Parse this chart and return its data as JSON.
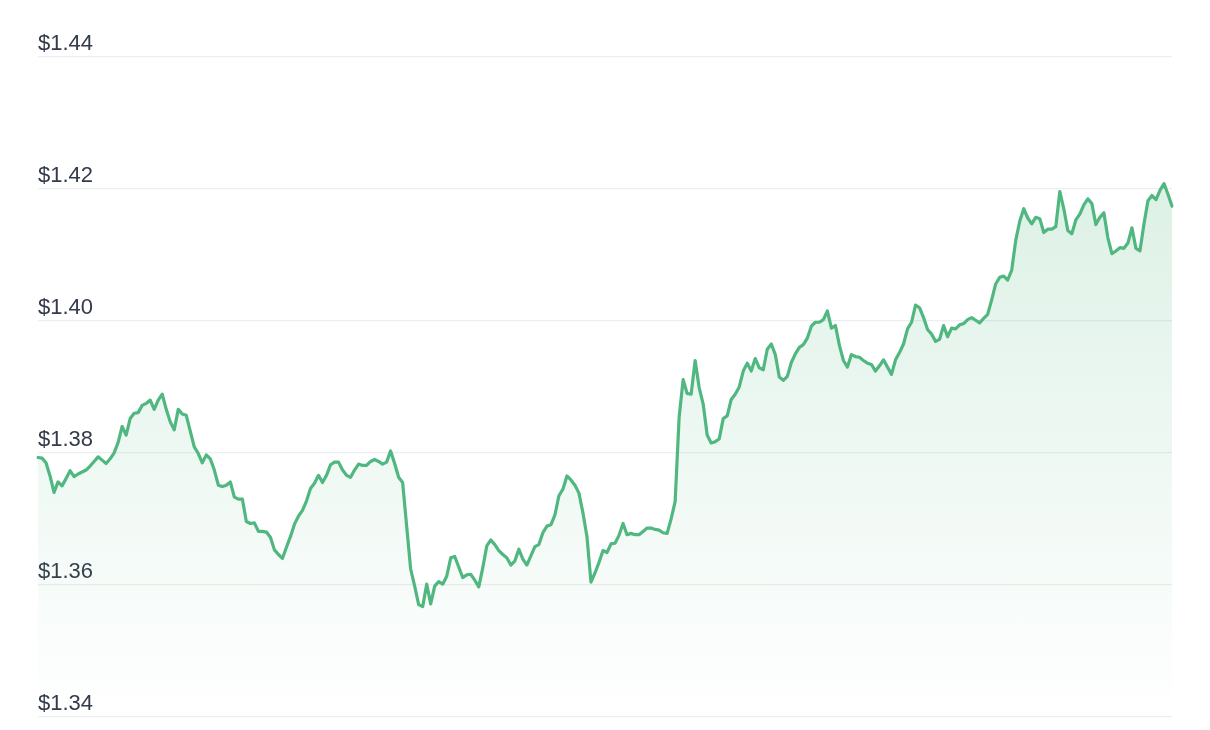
{
  "chart_data": {
    "type": "area",
    "categories": [
      null,
      null,
      null,
      null,
      null,
      null,
      null,
      null,
      null,
      null,
      null,
      null,
      null,
      null,
      null,
      null,
      null,
      null,
      null,
      null,
      null,
      null,
      null,
      null,
      null,
      null,
      null,
      null,
      null,
      null,
      null,
      null,
      null,
      null,
      null,
      null,
      null,
      null,
      null,
      null,
      null,
      null,
      null,
      null,
      null,
      null,
      null,
      null,
      null,
      null,
      null,
      null,
      null,
      null,
      null,
      null,
      null,
      null,
      null,
      null,
      null,
      null,
      null,
      null,
      null,
      null,
      null,
      null,
      null,
      null,
      null,
      null,
      null,
      null,
      null,
      null,
      null,
      null,
      null,
      null,
      null,
      null,
      null,
      null,
      null,
      null,
      null,
      null,
      null,
      null,
      null,
      null,
      null,
      null,
      null,
      null,
      null,
      null,
      null,
      null,
      null,
      null,
      null,
      null,
      null,
      null,
      null,
      null,
      null,
      null,
      null,
      null,
      null,
      null,
      null,
      null,
      null,
      null,
      null,
      null,
      null,
      null,
      null,
      null,
      null,
      null,
      null,
      null,
      null,
      null,
      null,
      null,
      null,
      null,
      null,
      null,
      null,
      null,
      null,
      null,
      null,
      null,
      null,
      null,
      null,
      null,
      null,
      null,
      null,
      null,
      null,
      null,
      null,
      null,
      null,
      null,
      null,
      null,
      null,
      null,
      null,
      null,
      null,
      null,
      null,
      null,
      null,
      null,
      null,
      null,
      null,
      null,
      null,
      null,
      null,
      null,
      null,
      null,
      null,
      null,
      null,
      null,
      null,
      null,
      null,
      null,
      null,
      null,
      null,
      null,
      null,
      null,
      null,
      null,
      null,
      null,
      null,
      null,
      null,
      null,
      null,
      null,
      null,
      null,
      null,
      null,
      null,
      null,
      null,
      null,
      null,
      null,
      null,
      null,
      null,
      null,
      null,
      null,
      null,
      null,
      null,
      null,
      null,
      null,
      null,
      null,
      null,
      null,
      null,
      null,
      null,
      null,
      null,
      null,
      null,
      null,
      null,
      null,
      null,
      null,
      null,
      null,
      null,
      null,
      null,
      null,
      null,
      null,
      null,
      null,
      null,
      null,
      null,
      null,
      null,
      null,
      null,
      null,
      null,
      null,
      null,
      null,
      null,
      null,
      null,
      null,
      null,
      null,
      null,
      null,
      null,
      null,
      null,
      null,
      null,
      null,
      null,
      null,
      null,
      null,
      null,
      null,
      null,
      null
    ],
    "values": [
      1.3793,
      1.3792,
      1.3785,
      1.3765,
      1.374,
      1.3756,
      1.375,
      1.3761,
      1.3773,
      1.3764,
      1.3768,
      1.3771,
      1.3774,
      1.378,
      1.3787,
      1.3794,
      1.3789,
      1.3784,
      1.3791,
      1.38,
      1.3816,
      1.384,
      1.3827,
      1.3852,
      1.386,
      1.3861,
      1.3872,
      1.3875,
      1.388,
      1.3866,
      1.388,
      1.3889,
      1.3866,
      1.3847,
      1.3835,
      1.3866,
      1.3859,
      1.3857,
      1.3833,
      1.3809,
      1.3799,
      1.3785,
      1.3797,
      1.3791,
      1.3774,
      1.3751,
      1.3749,
      1.3751,
      1.3756,
      1.3733,
      1.373,
      1.373,
      1.3696,
      1.3693,
      1.3694,
      1.3681,
      1.3681,
      1.368,
      1.3672,
      1.3653,
      1.3646,
      1.364,
      1.3657,
      1.3673,
      1.3692,
      1.3704,
      1.3713,
      1.3727,
      1.3746,
      1.3754,
      1.3766,
      1.3755,
      1.3766,
      1.3782,
      1.3786,
      1.3786,
      1.3774,
      1.3766,
      1.3763,
      1.3774,
      1.3783,
      1.3781,
      1.3781,
      1.3787,
      1.379,
      1.3787,
      1.3783,
      1.3786,
      1.3803,
      1.3784,
      1.3763,
      1.3755,
      1.3689,
      1.3624,
      1.3598,
      1.357,
      1.3567,
      1.3601,
      1.3571,
      1.3598,
      1.3605,
      1.3601,
      1.3613,
      1.3641,
      1.3643,
      1.3627,
      1.3611,
      1.3615,
      1.3616,
      1.3607,
      1.3597,
      1.3626,
      1.3659,
      1.3668,
      1.3661,
      1.3652,
      1.3646,
      1.3641,
      1.363,
      1.3636,
      1.3654,
      1.3639,
      1.363,
      1.3644,
      1.3658,
      1.3661,
      1.3679,
      1.3689,
      1.3691,
      1.3706,
      1.3735,
      1.3745,
      1.3765,
      1.3759,
      1.3751,
      1.3739,
      1.3709,
      1.3673,
      1.3604,
      1.3618,
      1.3634,
      1.3652,
      1.3649,
      1.3662,
      1.3663,
      1.3675,
      1.3693,
      1.3676,
      1.3678,
      1.3676,
      1.3676,
      1.3681,
      1.3686,
      1.3686,
      1.3684,
      1.3683,
      1.3679,
      1.3678,
      1.37,
      1.3726,
      1.3854,
      1.3911,
      1.389,
      1.3889,
      1.394,
      1.3899,
      1.3874,
      1.3827,
      1.3815,
      1.3817,
      1.3821,
      1.3852,
      1.3856,
      1.3881,
      1.3889,
      1.39,
      1.3924,
      1.3936,
      1.3924,
      1.3943,
      1.3929,
      1.3926,
      1.3957,
      1.3965,
      1.3949,
      1.3915,
      1.391,
      1.3916,
      1.3937,
      1.395,
      1.396,
      1.3964,
      1.3974,
      1.3992,
      1.3998,
      1.3998,
      1.4002,
      1.4015,
      1.3989,
      1.3993,
      1.3963,
      1.394,
      1.393,
      1.3949,
      1.3946,
      1.3945,
      1.394,
      1.3936,
      1.3934,
      1.3924,
      1.3932,
      1.3941,
      1.393,
      1.3919,
      1.3941,
      1.3952,
      1.3965,
      1.3988,
      1.3998,
      1.4024,
      1.402,
      1.4005,
      1.3987,
      1.398,
      1.3969,
      1.3972,
      1.3993,
      1.3976,
      1.3989,
      1.3988,
      1.3994,
      1.3996,
      1.4002,
      1.4005,
      1.4001,
      1.3997,
      1.4004,
      1.401,
      1.4032,
      1.4056,
      1.4066,
      1.4068,
      1.4062,
      1.4077,
      1.4122,
      1.4151,
      1.417,
      1.4156,
      1.4147,
      1.4157,
      1.4155,
      1.4134,
      1.4139,
      1.4139,
      1.4143,
      1.4196,
      1.417,
      1.4137,
      1.4132,
      1.4153,
      1.4162,
      1.4176,
      1.4185,
      1.4178,
      1.4146,
      1.4157,
      1.4164,
      1.4126,
      1.4102,
      1.4106,
      1.4111,
      1.411,
      1.4118,
      1.4141,
      1.411,
      1.4106,
      1.4147,
      1.4182,
      1.419,
      1.4184,
      1.4198,
      1.4208,
      1.4192,
      1.4174
    ],
    "color": "#4fb77f",
    "ylim": [
      1.34,
      1.44
    ],
    "yticks": [
      {
        "value": 1.34,
        "label": "$1.34"
      },
      {
        "value": 1.36,
        "label": "$1.36"
      },
      {
        "value": 1.38,
        "label": "$1.38"
      },
      {
        "value": 1.4,
        "label": "$1.40"
      },
      {
        "value": 1.42,
        "label": "$1.42"
      },
      {
        "value": 1.44,
        "label": "$1.44"
      }
    ],
    "grid": "y",
    "tick_labels": "y"
  }
}
